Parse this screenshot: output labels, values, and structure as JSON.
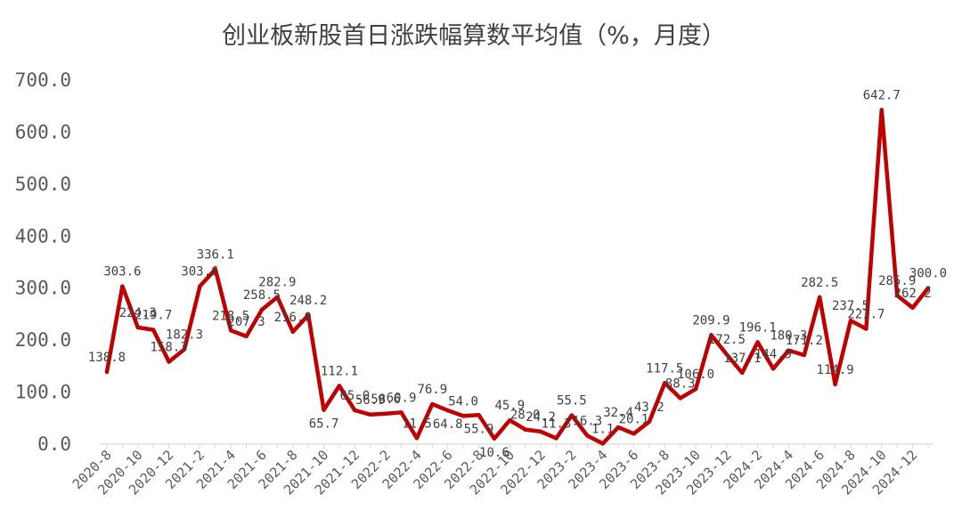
{
  "chart_data": {
    "type": "line",
    "title": "创业板新股首日涨跌幅算数平均值（%，月度）",
    "xlabel": "",
    "ylabel": "",
    "ylim": [
      0,
      700
    ],
    "yticks": [
      "0.0",
      "100.0",
      "200.0",
      "300.0",
      "400.0",
      "500.0",
      "600.0",
      "700.0"
    ],
    "grid": false,
    "legend": "none",
    "line_color": "#C00000",
    "x": [
      "2020-8",
      "2020-9",
      "2020-10",
      "2020-11",
      "2020-12",
      "2021-1",
      "2021-2",
      "2021-3",
      "2021-4",
      "2021-5",
      "2021-6",
      "2021-7",
      "2021-8",
      "2021-9",
      "2021-10",
      "2021-11",
      "2021-12",
      "2022-1",
      "2022-2",
      "2022-3",
      "2022-4",
      "2022-5",
      "2022-6",
      "2022-7",
      "2022-8",
      "2022-9",
      "2022-10",
      "2022-11",
      "2022-12",
      "2023-1",
      "2023-2",
      "2023-3",
      "2023-4",
      "2023-5",
      "2023-6",
      "2023-7",
      "2023-8",
      "2023-9",
      "2023-10",
      "2023-11",
      "2023-12",
      "2024-1",
      "2024-2",
      "2024-3",
      "2024-4",
      "2024-5",
      "2024-6",
      "2024-7",
      "2024-8",
      "2024-9",
      "2024-10",
      "2024-11",
      "2024-12",
      "2025-1"
    ],
    "xtick_labels": [
      "2020-8",
      "2020-10",
      "2020-12",
      "2021-2",
      "2021-4",
      "2021-6",
      "2021-8",
      "2021-10",
      "2021-12",
      "2022-2",
      "2022-4",
      "2022-6",
      "2022-8",
      "2022-10",
      "2022-12",
      "2023-2",
      "2023-4",
      "2023-6",
      "2023-8",
      "2023-10",
      "2023-12",
      "2024-2",
      "2024-4",
      "2024-6",
      "2024-8",
      "2024-10",
      "2024-12"
    ],
    "values": [
      138.8,
      303.6,
      224.3,
      219.7,
      158.3,
      182.3,
      303.6,
      336.1,
      218.5,
      207.3,
      258.5,
      282.9,
      216.0,
      248.2,
      65.7,
      112.1,
      65.0,
      56.9,
      58.6,
      60.9,
      11.5,
      76.9,
      64.8,
      54.0,
      55.9,
      10.6,
      45.9,
      28.0,
      24.2,
      11.3,
      55.5,
      16.3,
      1.1,
      32.4,
      20.1,
      43.2,
      117.5,
      88.3,
      106.0,
      209.9,
      172.5,
      137.1,
      196.1,
      144.9,
      180.3,
      171.2,
      282.5,
      114.9,
      237.5,
      221.7,
      642.7,
      285.9,
      262.2,
      300.0
    ],
    "data_labels": [
      "138.8",
      "303.6",
      "224.3",
      "219.7",
      "158.3",
      "182.3",
      "303.6",
      "336.1",
      "218.5",
      "207.3",
      "258.5",
      "282.9",
      "216.0",
      "248.2",
      "65.7",
      "112.1",
      "65.0",
      "56.9",
      "58.6",
      "60.9",
      "11.5",
      "76.9",
      "64.8",
      "54.0",
      "55.9",
      "10.6",
      "45.9",
      "28.0",
      "24.2",
      "11.3",
      "55.5",
      "16.3",
      "1.1",
      "32.4",
      "20.1",
      "43.2",
      "117.5",
      "88.3",
      "106.0",
      "209.9",
      "172.5",
      "137.1",
      "196.1",
      "144.9",
      "180.3",
      "171.2",
      "282.5",
      "114.9",
      "237.5",
      "221.7",
      "642.7",
      "285.9",
      "262.2",
      "300.0"
    ]
  }
}
